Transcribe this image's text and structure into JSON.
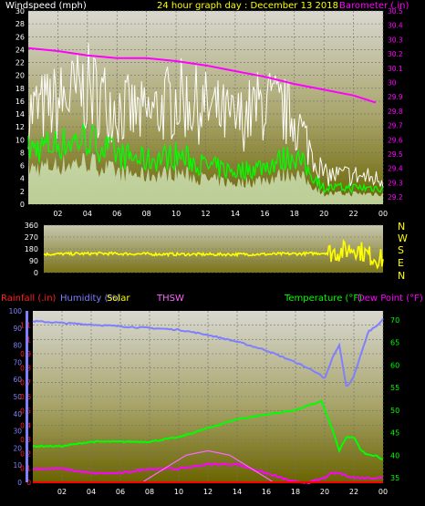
{
  "header": {
    "windspeed_label": "Windspeed (mph)",
    "title": "24 hour graph day : December 13 2018",
    "barometer_label": "Barometer (.in)"
  },
  "wind_dir_letters": [
    "N",
    "W",
    "S",
    "E",
    "N"
  ],
  "bottom_legend": {
    "rainfall": "Rainfall (.in)",
    "humidity": "Humidity (%)",
    "solar": "Solar",
    "thsw": "THSW",
    "temperature": "Temperature (°F)",
    "dewpoint": "Dew Point (°F)"
  },
  "colors": {
    "windspeed_label": "#ffffff",
    "title": "#ffff00",
    "barometer": "#ff00ff",
    "gust": "#ffffff",
    "avg_wind": "#00ff00",
    "direction": "#ffff00",
    "rainfall": "#ff0000",
    "humidity": "#7f7fff",
    "solar": "#ffff00",
    "thsw": "#ff66ff",
    "temperature": "#00ff00",
    "dewpoint": "#ff00ff"
  },
  "chart_data": [
    {
      "type": "line",
      "name": "wind-barometer",
      "x_ticks": [
        "02",
        "04",
        "06",
        "08",
        "10",
        "12",
        "14",
        "16",
        "18",
        "20",
        "22",
        "00"
      ],
      "y_left_ticks": [
        "0",
        "2",
        "4",
        "6",
        "8",
        "10",
        "12",
        "14",
        "16",
        "18",
        "20",
        "22",
        "24",
        "26",
        "28",
        "30"
      ],
      "y_left_range": [
        0,
        30
      ],
      "y_right_ticks": [
        "29.2",
        "29.3",
        "29.4",
        "29.5",
        "29.6",
        "29.7",
        "29.8",
        "29.9",
        "30",
        "30.1",
        "30.2",
        "30.3",
        "30.4",
        "30.5"
      ],
      "y_right_range": [
        29.15,
        30.5
      ],
      "series": [
        {
          "key": "barometer",
          "x": [
            0,
            2,
            4,
            6,
            8,
            10,
            12,
            14,
            16,
            18,
            20,
            22,
            23.5
          ],
          "values": [
            30.24,
            30.22,
            30.19,
            30.17,
            30.17,
            30.15,
            30.12,
            30.08,
            30.04,
            29.99,
            29.95,
            29.91,
            29.86
          ]
        },
        {
          "key": "gust_max",
          "x": [
            0,
            2,
            4,
            6,
            8,
            10,
            12,
            14,
            16,
            18,
            20,
            22,
            24
          ],
          "values": [
            19,
            21,
            24,
            20,
            18,
            22,
            20,
            17,
            21,
            18,
            6,
            6,
            5
          ]
        },
        {
          "key": "avg_wind",
          "x": [
            0,
            2,
            4,
            6,
            8,
            10,
            12,
            14,
            16,
            18,
            20,
            22,
            24
          ],
          "values": [
            10,
            11,
            12,
            9,
            8,
            9,
            7,
            6,
            7,
            9,
            3,
            3,
            3
          ]
        }
      ]
    },
    {
      "type": "scatter",
      "name": "wind-direction",
      "y_ticks": [
        "360",
        "270",
        "180",
        "90",
        "0"
      ],
      "y_range": [
        0,
        360
      ],
      "series": [
        {
          "key": "direction",
          "x": [
            0,
            4,
            8,
            12,
            16,
            19,
            20,
            21,
            22,
            23,
            24
          ],
          "values": [
            140,
            145,
            140,
            138,
            140,
            145,
            150,
            160,
            190,
            130,
            100
          ]
        }
      ]
    },
    {
      "type": "line",
      "name": "weather",
      "x_ticks": [
        "02",
        "04",
        "06",
        "08",
        "10",
        "12",
        "14",
        "16",
        "18",
        "20",
        "22",
        "00"
      ],
      "humidity_ticks": [
        "0",
        "10",
        "20",
        "30",
        "40",
        "50",
        "60",
        "70",
        "80",
        "90",
        "100"
      ],
      "humidity_range": [
        0,
        100
      ],
      "rain_ticks": [
        "0",
        "0.1",
        "0.2",
        "0.3",
        "0.4",
        "0.5",
        "0.6",
        "0.7",
        "0.8",
        "0.9",
        "1",
        "1.1"
      ],
      "rain_range": [
        0,
        1.2
      ],
      "temp_ticks": [
        "35",
        "40",
        "45",
        "50",
        "55",
        "60",
        "65",
        "70"
      ],
      "temp_range": [
        34,
        72
      ],
      "series": [
        {
          "key": "humidity",
          "x": [
            0,
            2,
            4,
            6,
            8,
            10,
            12,
            14,
            16,
            18,
            19.5,
            20,
            20.5,
            21,
            21.5,
            22,
            22.5,
            23,
            23.5,
            24
          ],
          "values": [
            94,
            93,
            92,
            91,
            90,
            89,
            86,
            82,
            77,
            70,
            64,
            60,
            72,
            80,
            55,
            62,
            75,
            88,
            91,
            95
          ]
        },
        {
          "key": "temperature",
          "x": [
            0,
            2,
            4,
            6,
            8,
            10,
            12,
            14,
            16,
            18,
            19.8,
            20,
            20.5,
            21,
            21.5,
            22,
            22.5,
            23,
            23.5,
            24
          ],
          "values": [
            42,
            42,
            43,
            43,
            43,
            44,
            46,
            48,
            49,
            50,
            52,
            50,
            46,
            41,
            44,
            44,
            41,
            40,
            40,
            39
          ]
        },
        {
          "key": "dewpoint",
          "x": [
            0,
            2,
            4,
            6,
            8,
            10,
            12,
            14,
            16,
            17,
            18,
            19,
            20,
            20.5,
            21,
            22,
            23,
            24
          ],
          "values": [
            37,
            37,
            36,
            36,
            37,
            37,
            38,
            38,
            36,
            35,
            34,
            34,
            35,
            36,
            36,
            35,
            35,
            35
          ]
        },
        {
          "key": "thsw",
          "x": [
            7.5,
            9,
            10.5,
            12,
            13.5,
            15,
            16.5
          ],
          "values": [
            34,
            37,
            40,
            41,
            40,
            37,
            34
          ]
        },
        {
          "key": "rainfall",
          "x": [
            0,
            24
          ],
          "values": [
            0,
            0
          ]
        }
      ]
    }
  ]
}
